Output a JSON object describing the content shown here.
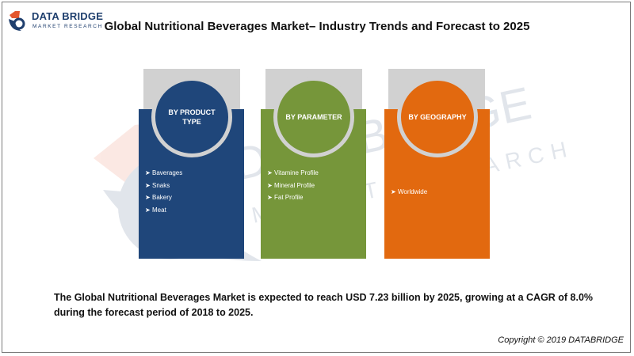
{
  "logo": {
    "name": "DATA BRIDGE",
    "subtitle": "MARKET RESEARCH"
  },
  "title": "Global Nutritional Beverages Market– Industry Trends and Forecast to 2025",
  "watermark": {
    "line1": "DATA BRIDGE",
    "line2": "MARKET RESEARCH"
  },
  "colors": {
    "blue": "#1f467a",
    "green": "#76963a",
    "orange": "#e2690f",
    "tab_gray": "#d1d1d1"
  },
  "segments": [
    {
      "label": "BY PRODUCT TYPE",
      "items": [
        "Baverages",
        "Snaks",
        "Bakery",
        "Meat"
      ]
    },
    {
      "label": "BY PARAMETER",
      "items": [
        "Vitamine Profile",
        "Mineral Profile",
        "Fat Profile"
      ]
    },
    {
      "label": "BY GEOGRAPHY",
      "items": [
        "Worldwide"
      ]
    }
  ],
  "bullet_icon": "arrow-right-icon",
  "description": "The Global Nutritional Beverages Market is expected to reach USD 7.23 billion by 2025, growing at a CAGR of 8.0% during the forecast period of 2018 to 2025.",
  "copyright": "Copyright © 2019 DATABRIDGE"
}
